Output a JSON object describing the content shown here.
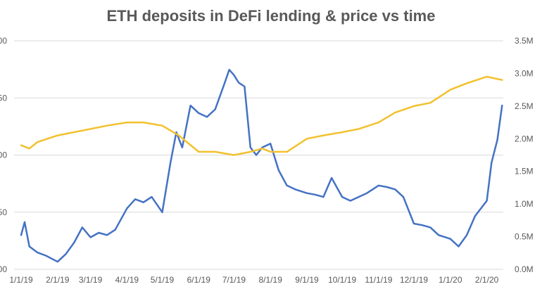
{
  "chart_data": {
    "type": "line",
    "title": "ETH deposits in DeFi lending & price vs time",
    "xlabel": "",
    "x_ticks": [
      "1/1/19",
      "2/1/19",
      "3/1/19",
      "4/1/19",
      "5/1/19",
      "6/1/19",
      "7/1/19",
      "8/1/19",
      "9/1/19",
      "10/1/19",
      "11/1/19",
      "12/1/19",
      "1/1/20",
      "2/1/20"
    ],
    "y_left": {
      "tick_labels": [
        "00",
        "50",
        "00",
        "50",
        "00"
      ],
      "ylim": [
        0,
        300
      ]
    },
    "y_right": {
      "tick_labels": [
        "0.0M",
        "0.5M",
        "1.0M",
        "1.5M",
        "2.0M",
        "2.5M",
        "3.0M",
        "3.5M"
      ],
      "ylim": [
        0,
        3500000
      ]
    },
    "grid": true,
    "series": [
      {
        "axis": "left",
        "color": "#4472C4",
        "x": [
          "2019-01-01",
          "2019-01-04",
          "2019-01-08",
          "2019-01-15",
          "2019-01-22",
          "2019-02-01",
          "2019-02-08",
          "2019-02-15",
          "2019-02-22",
          "2019-03-01",
          "2019-03-08",
          "2019-03-15",
          "2019-03-22",
          "2019-04-01",
          "2019-04-08",
          "2019-04-15",
          "2019-04-22",
          "2019-05-01",
          "2019-05-08",
          "2019-05-13",
          "2019-05-18",
          "2019-05-25",
          "2019-06-01",
          "2019-06-08",
          "2019-06-15",
          "2019-06-22",
          "2019-06-27",
          "2019-07-01",
          "2019-07-05",
          "2019-07-10",
          "2019-07-15",
          "2019-07-20",
          "2019-07-25",
          "2019-08-01",
          "2019-08-08",
          "2019-08-15",
          "2019-08-22",
          "2019-09-01",
          "2019-09-08",
          "2019-09-15",
          "2019-09-22",
          "2019-10-01",
          "2019-10-08",
          "2019-10-15",
          "2019-10-22",
          "2019-11-01",
          "2019-11-08",
          "2019-11-15",
          "2019-11-22",
          "2019-12-01",
          "2019-12-08",
          "2019-12-15",
          "2019-12-22",
          "2020-01-01",
          "2020-01-08",
          "2020-01-15",
          "2020-01-22",
          "2020-02-01",
          "2020-02-05",
          "2020-02-10",
          "2020-02-14"
        ],
        "values": [
          45,
          62,
          30,
          22,
          18,
          10,
          20,
          35,
          55,
          42,
          48,
          45,
          52,
          80,
          92,
          88,
          95,
          75,
          140,
          180,
          160,
          215,
          205,
          200,
          210,
          240,
          262,
          255,
          245,
          240,
          160,
          150,
          160,
          165,
          130,
          110,
          105,
          100,
          98,
          95,
          120,
          95,
          90,
          95,
          100,
          110,
          108,
          105,
          95,
          60,
          58,
          55,
          45,
          40,
          30,
          45,
          70,
          90,
          140,
          170,
          215
        ],
        "values_note": ""
      },
      {
        "axis": "right",
        "color": "#F2C12E",
        "x": [
          "2019-01-01",
          "2019-01-08",
          "2019-01-15",
          "2019-02-01",
          "2019-02-15",
          "2019-03-01",
          "2019-03-15",
          "2019-04-01",
          "2019-04-15",
          "2019-05-01",
          "2019-05-15",
          "2019-06-01",
          "2019-06-15",
          "2019-07-01",
          "2019-07-15",
          "2019-07-25",
          "2019-08-01",
          "2019-08-15",
          "2019-09-01",
          "2019-09-15",
          "2019-10-01",
          "2019-10-15",
          "2019-11-01",
          "2019-11-15",
          "2019-12-01",
          "2019-12-15",
          "2020-01-01",
          "2020-01-15",
          "2020-02-01",
          "2020-02-14"
        ],
        "values": [
          1900000,
          1850000,
          1950000,
          2050000,
          2100000,
          2150000,
          2200000,
          2250000,
          2250000,
          2200000,
          2050000,
          1800000,
          1800000,
          1750000,
          1800000,
          1850000,
          1800000,
          1800000,
          2000000,
          2050000,
          2100000,
          2150000,
          2250000,
          2400000,
          2500000,
          2550000,
          2750000,
          2850000,
          2950000,
          2900000
        ]
      }
    ]
  }
}
